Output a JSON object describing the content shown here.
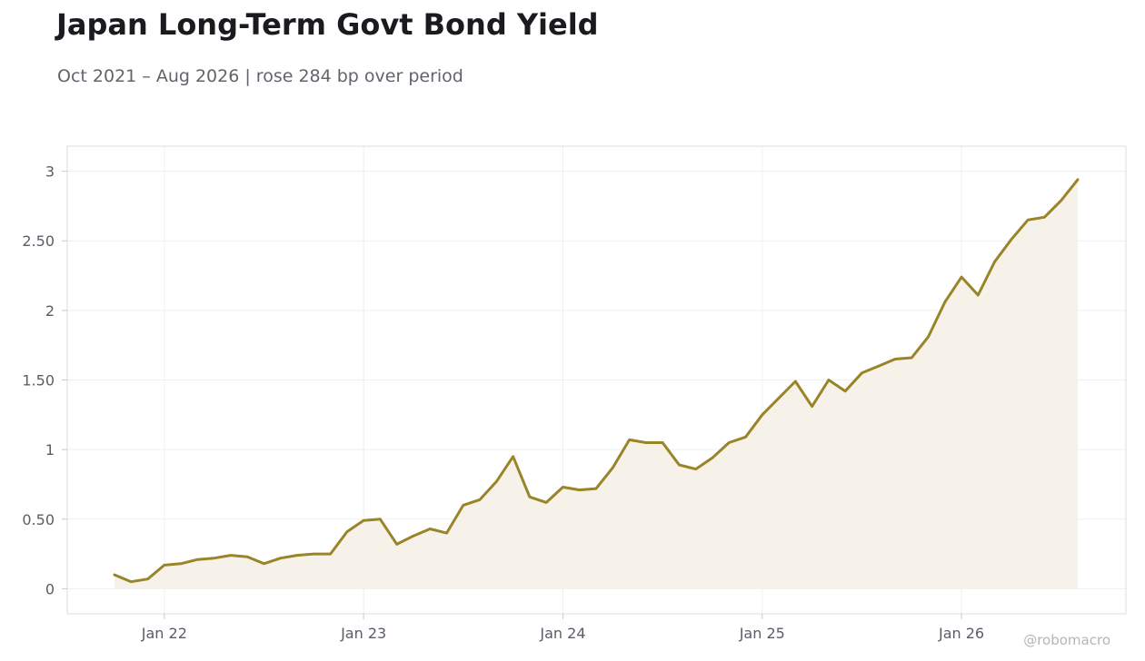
{
  "header": {
    "title": "Japan Long-Term Govt Bond Yield",
    "subtitle": "Oct 2021 – Aug 2026 | rose 284 bp over period"
  },
  "watermark": "@robomacro",
  "colors": {
    "line": "#9a8428",
    "area": "#f6f2ea",
    "grid": "#efefef",
    "frame": "#dcdcdc"
  },
  "chart_data": {
    "type": "area",
    "title": "Japan Long-Term Govt Bond Yield",
    "xlabel": "",
    "ylabel": "",
    "ylim": [
      -0.18,
      3.18
    ],
    "yticks": [
      0,
      0.5,
      1,
      1.5,
      2,
      2.5,
      3
    ],
    "ytick_labels": [
      "0",
      "0.50",
      "1",
      "1.50",
      "2",
      "2.50",
      "3"
    ],
    "xticks": [
      "2022-01",
      "2023-01",
      "2024-01",
      "2025-01",
      "2026-01"
    ],
    "xtick_labels": [
      "Jan 22",
      "Jan 23",
      "Jan 24",
      "Jan 25",
      "Jan 26"
    ],
    "grid": true,
    "series": [
      {
        "x": [
          "2021-10",
          "2021-11",
          "2021-12",
          "2022-01",
          "2022-02",
          "2022-03",
          "2022-04",
          "2022-05",
          "2022-06",
          "2022-07",
          "2022-08",
          "2022-09",
          "2022-10",
          "2022-11",
          "2022-12",
          "2023-01",
          "2023-02",
          "2023-03",
          "2023-04",
          "2023-05",
          "2023-06",
          "2023-07",
          "2023-08",
          "2023-09",
          "2023-10",
          "2023-11",
          "2023-12",
          "2024-01",
          "2024-02",
          "2024-03",
          "2024-04",
          "2024-05",
          "2024-06",
          "2024-07",
          "2024-08",
          "2024-09",
          "2024-10",
          "2024-11",
          "2024-12",
          "2025-01",
          "2025-02",
          "2025-03",
          "2025-04",
          "2025-05",
          "2025-06",
          "2025-07",
          "2025-08",
          "2025-09",
          "2025-10",
          "2025-11",
          "2025-12",
          "2026-01",
          "2026-02",
          "2026-03",
          "2026-04",
          "2026-05",
          "2026-06",
          "2026-07",
          "2026-08"
        ],
        "values": [
          0.1,
          0.05,
          0.07,
          0.17,
          0.18,
          0.21,
          0.22,
          0.24,
          0.23,
          0.18,
          0.22,
          0.24,
          0.25,
          0.25,
          0.41,
          0.49,
          0.5,
          0.32,
          0.38,
          0.43,
          0.4,
          0.6,
          0.64,
          0.77,
          0.95,
          0.66,
          0.62,
          0.73,
          0.71,
          0.72,
          0.87,
          1.07,
          1.05,
          1.05,
          0.89,
          0.86,
          0.94,
          1.05,
          1.09,
          1.25,
          1.37,
          1.49,
          1.31,
          1.5,
          1.42,
          1.55,
          1.6,
          1.65,
          1.66,
          1.81,
          2.06,
          2.24,
          2.11,
          2.35,
          2.51,
          2.65,
          2.67,
          2.79,
          2.94
        ]
      }
    ]
  }
}
